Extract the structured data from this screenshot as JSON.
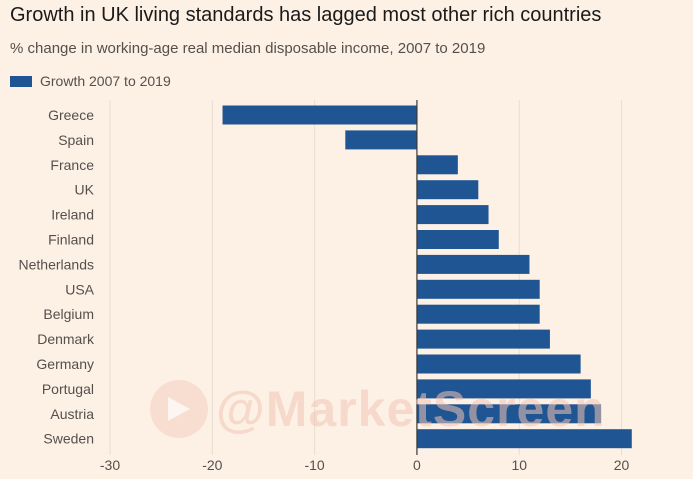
{
  "chart_data": {
    "type": "bar",
    "orientation": "horizontal",
    "title": "Growth in UK living standards has lagged most other rich countries",
    "subtitle": "% change in working-age real median disposable income, 2007 to 2019",
    "legend": {
      "label": "Growth 2007 to 2019",
      "position": "top-left"
    },
    "categories": [
      "Greece",
      "Spain",
      "France",
      "UK",
      "Ireland",
      "Finland",
      "Netherlands",
      "USA",
      "Belgium",
      "Denmark",
      "Germany",
      "Portugal",
      "Austria",
      "Sweden"
    ],
    "values": [
      -19,
      -7,
      4,
      6,
      7,
      8,
      11,
      12,
      12,
      13,
      16,
      17,
      18,
      21
    ],
    "xlim": [
      -30,
      22
    ],
    "xticks": [
      -30,
      -20,
      -10,
      0,
      10,
      20
    ],
    "xtick_labels": [
      "-30",
      "-20",
      "-10",
      "0",
      "10",
      "20"
    ],
    "grid": "vertical",
    "xlabel": "",
    "ylabel": ""
  },
  "colors": {
    "background": "#fdf1e6",
    "bar": "#1f5593",
    "grid": "#e8ddd3",
    "zero_line": "#3a3a3a"
  },
  "watermark": {
    "text": "@MarketScreen"
  }
}
